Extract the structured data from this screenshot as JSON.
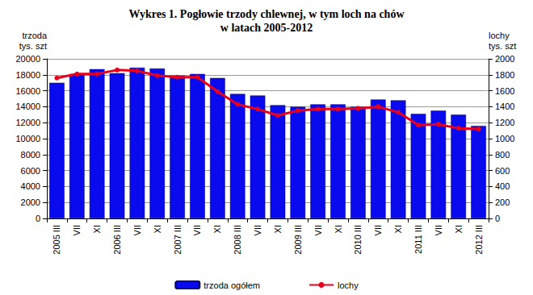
{
  "chart_data": {
    "type": "bar",
    "title": "Wykres 1. Pogłowie trzody chlewnej, w tym loch na chów\nw latach 2005-2012",
    "y_label": "trzoda\ntys. szt",
    "y2_label": "lochy\ntys. szt",
    "categories": [
      "2005 III",
      "VII",
      "XI",
      "2006 III",
      "VII",
      "XI",
      "2007 III",
      "VII",
      "XI",
      "2008 III",
      "VII",
      "XI",
      "2009 III",
      "VII",
      "XI",
      "2010 III",
      "VII",
      "XI",
      "2011 III",
      "VII",
      "XI",
      "2012 III"
    ],
    "series": [
      {
        "name": "trzoda ogółem",
        "type": "bar",
        "color": "#0a0aee",
        "values": [
          17000,
          18100,
          18700,
          18200,
          18900,
          18800,
          17900,
          18100,
          17600,
          15600,
          15400,
          14200,
          14000,
          14300,
          14300,
          14000,
          14900,
          14800,
          13100,
          13500,
          13000,
          11600
        ]
      },
      {
        "name": "lochy",
        "type": "line",
        "axis": "y2",
        "color": "#e8001c",
        "marker": "circle",
        "values": [
          1760,
          1810,
          1810,
          1860,
          1850,
          1790,
          1770,
          1770,
          1590,
          1430,
          1370,
          1290,
          1350,
          1370,
          1370,
          1380,
          1400,
          1330,
          1170,
          1180,
          1130,
          1120
        ]
      }
    ],
    "ylim": [
      0,
      20000
    ],
    "yticks": [
      0,
      2000,
      4000,
      6000,
      8000,
      10000,
      12000,
      14000,
      16000,
      18000,
      20000
    ],
    "y2lim": [
      0,
      2000
    ],
    "y2ticks": [
      0,
      200,
      400,
      600,
      800,
      1000,
      1200,
      1400,
      1600,
      1800,
      2000
    ],
    "grid": true,
    "legend": "bottom"
  }
}
